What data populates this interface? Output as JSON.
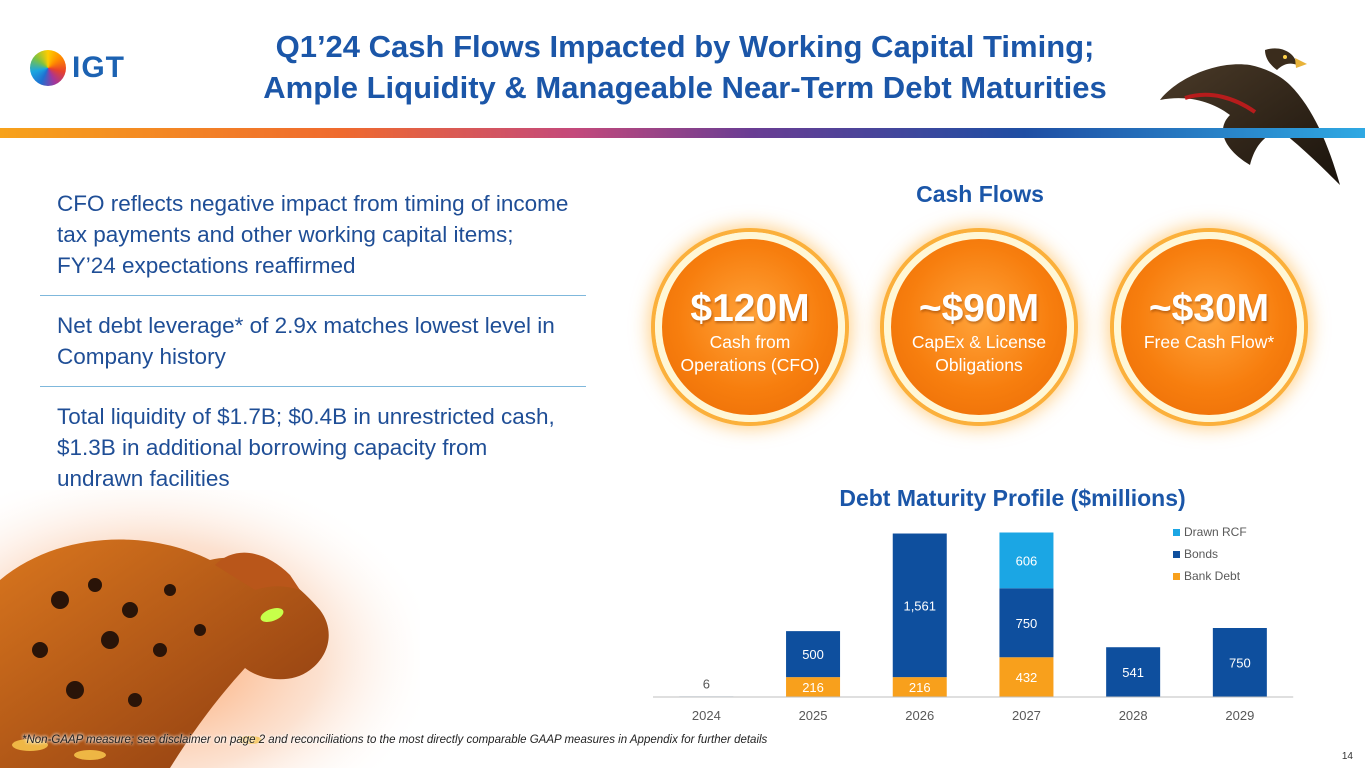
{
  "brand": {
    "logo_text": "IGT",
    "accent": "#1b56a8",
    "orange": "#f77e0e"
  },
  "header": {
    "title_line1": "Q1’24 Cash Flows Impacted by Working Capital Timing;",
    "title_line2": "Ample Liquidity & Manageable Near-Term Debt Maturities"
  },
  "bullets": [
    {
      "text": "CFO reflects negative impact from timing of income tax payments and other working capital items; FY’24 expectations reaffirmed"
    },
    {
      "text": "Net debt leverage* of 2.9x matches lowest level in Company history"
    },
    {
      "text": "Total liquidity of $1.7B; $0.4B in unrestricted cash, $1.3B in additional borrowing capacity from undrawn facilities"
    }
  ],
  "cash_flows": {
    "title": "Cash Flows",
    "circles": [
      {
        "value": "$120M",
        "label_line1": "Cash from",
        "label_line2": "Operations (CFO)"
      },
      {
        "value": "~$90M",
        "label_line1": "CapEx & License",
        "label_line2": "Obligations"
      },
      {
        "value": "~$30M",
        "label_line1": "Free Cash Flow*",
        "label_line2": ""
      }
    ]
  },
  "debt_chart_title": "Debt Maturity Profile ($millions)",
  "chart_data": {
    "type": "bar",
    "stacked": true,
    "title": "Debt Maturity Profile ($millions)",
    "categories": [
      "2024",
      "2025",
      "2026",
      "2027",
      "2028",
      "2029"
    ],
    "series": [
      {
        "name": "Bank Debt",
        "color": "#f8a01c",
        "values": [
          0,
          216,
          216,
          432,
          0,
          0
        ],
        "labels": [
          "",
          "216",
          "216",
          "432",
          "",
          ""
        ]
      },
      {
        "name": "Bonds",
        "color": "#0e4f9e",
        "values": [
          6,
          500,
          1561,
          750,
          541,
          750
        ],
        "labels": [
          "6",
          "500",
          "1,561",
          "750",
          "541",
          "750"
        ]
      },
      {
        "name": "Drawn RCF",
        "color": "#1ba6e4",
        "values": [
          0,
          0,
          0,
          606,
          0,
          0
        ],
        "labels": [
          "",
          "",
          "",
          "606",
          "",
          ""
        ]
      }
    ],
    "legend_order": [
      "Drawn RCF",
      "Bonds",
      "Bank Debt"
    ],
    "legend_position": "top-right",
    "grid": false
  },
  "footnote": "*Non-GAAP measure; see disclaimer on page 2 and reconciliations to the most directly comparable GAAP measures in Appendix for further details",
  "page_number": "14"
}
